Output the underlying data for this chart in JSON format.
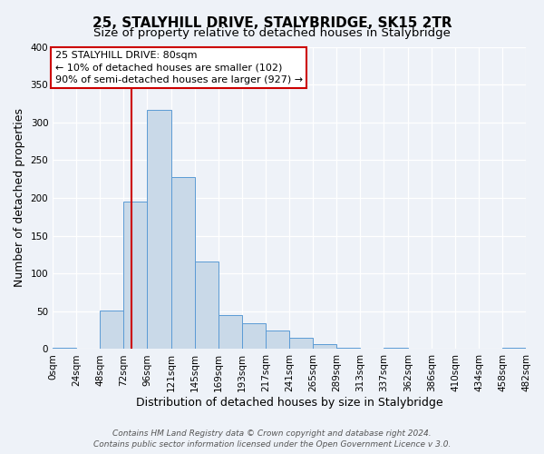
{
  "title": "25, STALYHILL DRIVE, STALYBRIDGE, SK15 2TR",
  "subtitle": "Size of property relative to detached houses in Stalybridge",
  "xlabel": "Distribution of detached houses by size in Stalybridge",
  "ylabel": "Number of detached properties",
  "bin_edges": [
    0,
    24,
    48,
    72,
    96,
    121,
    145,
    169,
    193,
    217,
    241,
    265,
    289,
    313,
    337,
    362,
    386,
    410,
    434,
    458,
    482
  ],
  "counts": [
    2,
    0,
    51,
    195,
    317,
    228,
    116,
    45,
    34,
    24,
    15,
    6,
    2,
    0,
    2,
    0,
    0,
    0,
    0,
    2
  ],
  "bar_color": "#c9d9e8",
  "bar_edge_color": "#5b9bd5",
  "vline_x": 80,
  "vline_color": "#cc0000",
  "ylim": [
    0,
    400
  ],
  "yticks": [
    0,
    50,
    100,
    150,
    200,
    250,
    300,
    350,
    400
  ],
  "xtick_labels": [
    "0sqm",
    "24sqm",
    "48sqm",
    "72sqm",
    "96sqm",
    "121sqm",
    "145sqm",
    "169sqm",
    "193sqm",
    "217sqm",
    "241sqm",
    "265sqm",
    "289sqm",
    "313sqm",
    "337sqm",
    "362sqm",
    "386sqm",
    "410sqm",
    "434sqm",
    "458sqm",
    "482sqm"
  ],
  "annotation_title": "25 STALYHILL DRIVE: 80sqm",
  "annotation_line1": "← 10% of detached houses are smaller (102)",
  "annotation_line2": "90% of semi-detached houses are larger (927) →",
  "annotation_box_color": "#ffffff",
  "annotation_box_edge": "#cc0000",
  "footer_line1": "Contains HM Land Registry data © Crown copyright and database right 2024.",
  "footer_line2": "Contains public sector information licensed under the Open Government Licence v 3.0.",
  "background_color": "#eef2f8",
  "grid_color": "#ffffff",
  "title_fontsize": 11,
  "subtitle_fontsize": 9.5,
  "axis_label_fontsize": 9,
  "tick_fontsize": 7.5,
  "annotation_fontsize": 8,
  "footer_fontsize": 6.5
}
